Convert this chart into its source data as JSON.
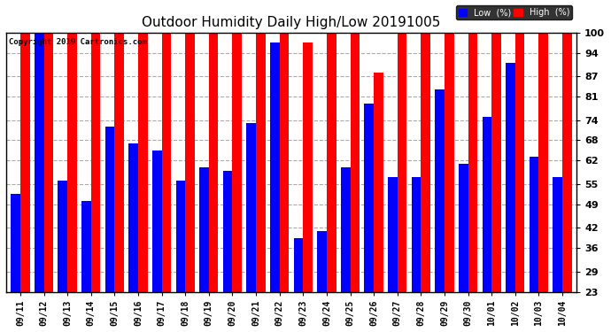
{
  "title": "Outdoor Humidity Daily High/Low 20191005",
  "copyright": "Copyright 2019 Cartronics.com",
  "dates": [
    "09/11",
    "09/12",
    "09/13",
    "09/14",
    "09/15",
    "09/16",
    "09/17",
    "09/18",
    "09/19",
    "09/20",
    "09/21",
    "09/22",
    "09/23",
    "09/24",
    "09/25",
    "09/26",
    "09/27",
    "09/28",
    "09/29",
    "09/30",
    "10/01",
    "10/02",
    "10/03",
    "10/04"
  ],
  "high_values": [
    100,
    100,
    100,
    100,
    100,
    100,
    100,
    100,
    100,
    100,
    100,
    100,
    97,
    100,
    100,
    88,
    100,
    100,
    100,
    100,
    100,
    100,
    100,
    100
  ],
  "low_values": [
    52,
    100,
    56,
    50,
    72,
    67,
    65,
    56,
    60,
    59,
    73,
    97,
    39,
    41,
    60,
    79,
    57,
    57,
    83,
    61,
    75,
    91,
    63,
    57
  ],
  "high_color": "#ff0000",
  "low_color": "#0000ff",
  "bg_color": "#ffffff",
  "ylim_min": 23,
  "ylim_max": 100,
  "yticks": [
    23,
    29,
    36,
    42,
    49,
    55,
    62,
    68,
    74,
    81,
    87,
    94,
    100
  ],
  "title_fontsize": 11,
  "grid_color": "#aaaaaa",
  "border_color": "#000000"
}
